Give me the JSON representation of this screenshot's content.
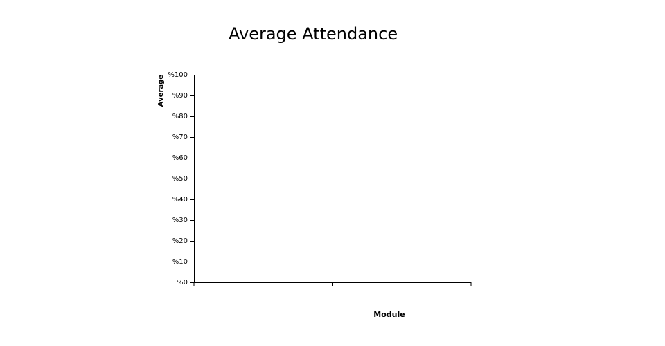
{
  "chart_data": {
    "type": "bar",
    "title": "Average Attendance",
    "x_label": "Module",
    "y_label": "Average",
    "categories": [
      null
    ],
    "values": [
      null
    ],
    "color": "#4472c4",
    "ylim": [
      0,
      100
    ],
    "yticks": [
      {
        "value": 0,
        "label": "%0"
      },
      {
        "value": 10,
        "label": "%10"
      },
      {
        "value": 20,
        "label": "%20"
      },
      {
        "value": 30,
        "label": "%30"
      },
      {
        "value": 40,
        "label": "%40"
      },
      {
        "value": 50,
        "label": "%50"
      },
      {
        "value": 60,
        "label": "%60"
      },
      {
        "value": 70,
        "label": "%70"
      },
      {
        "value": 80,
        "label": "%80"
      },
      {
        "value": 90,
        "label": "%90"
      },
      {
        "value": 100,
        "label": "%100"
      }
    ]
  }
}
